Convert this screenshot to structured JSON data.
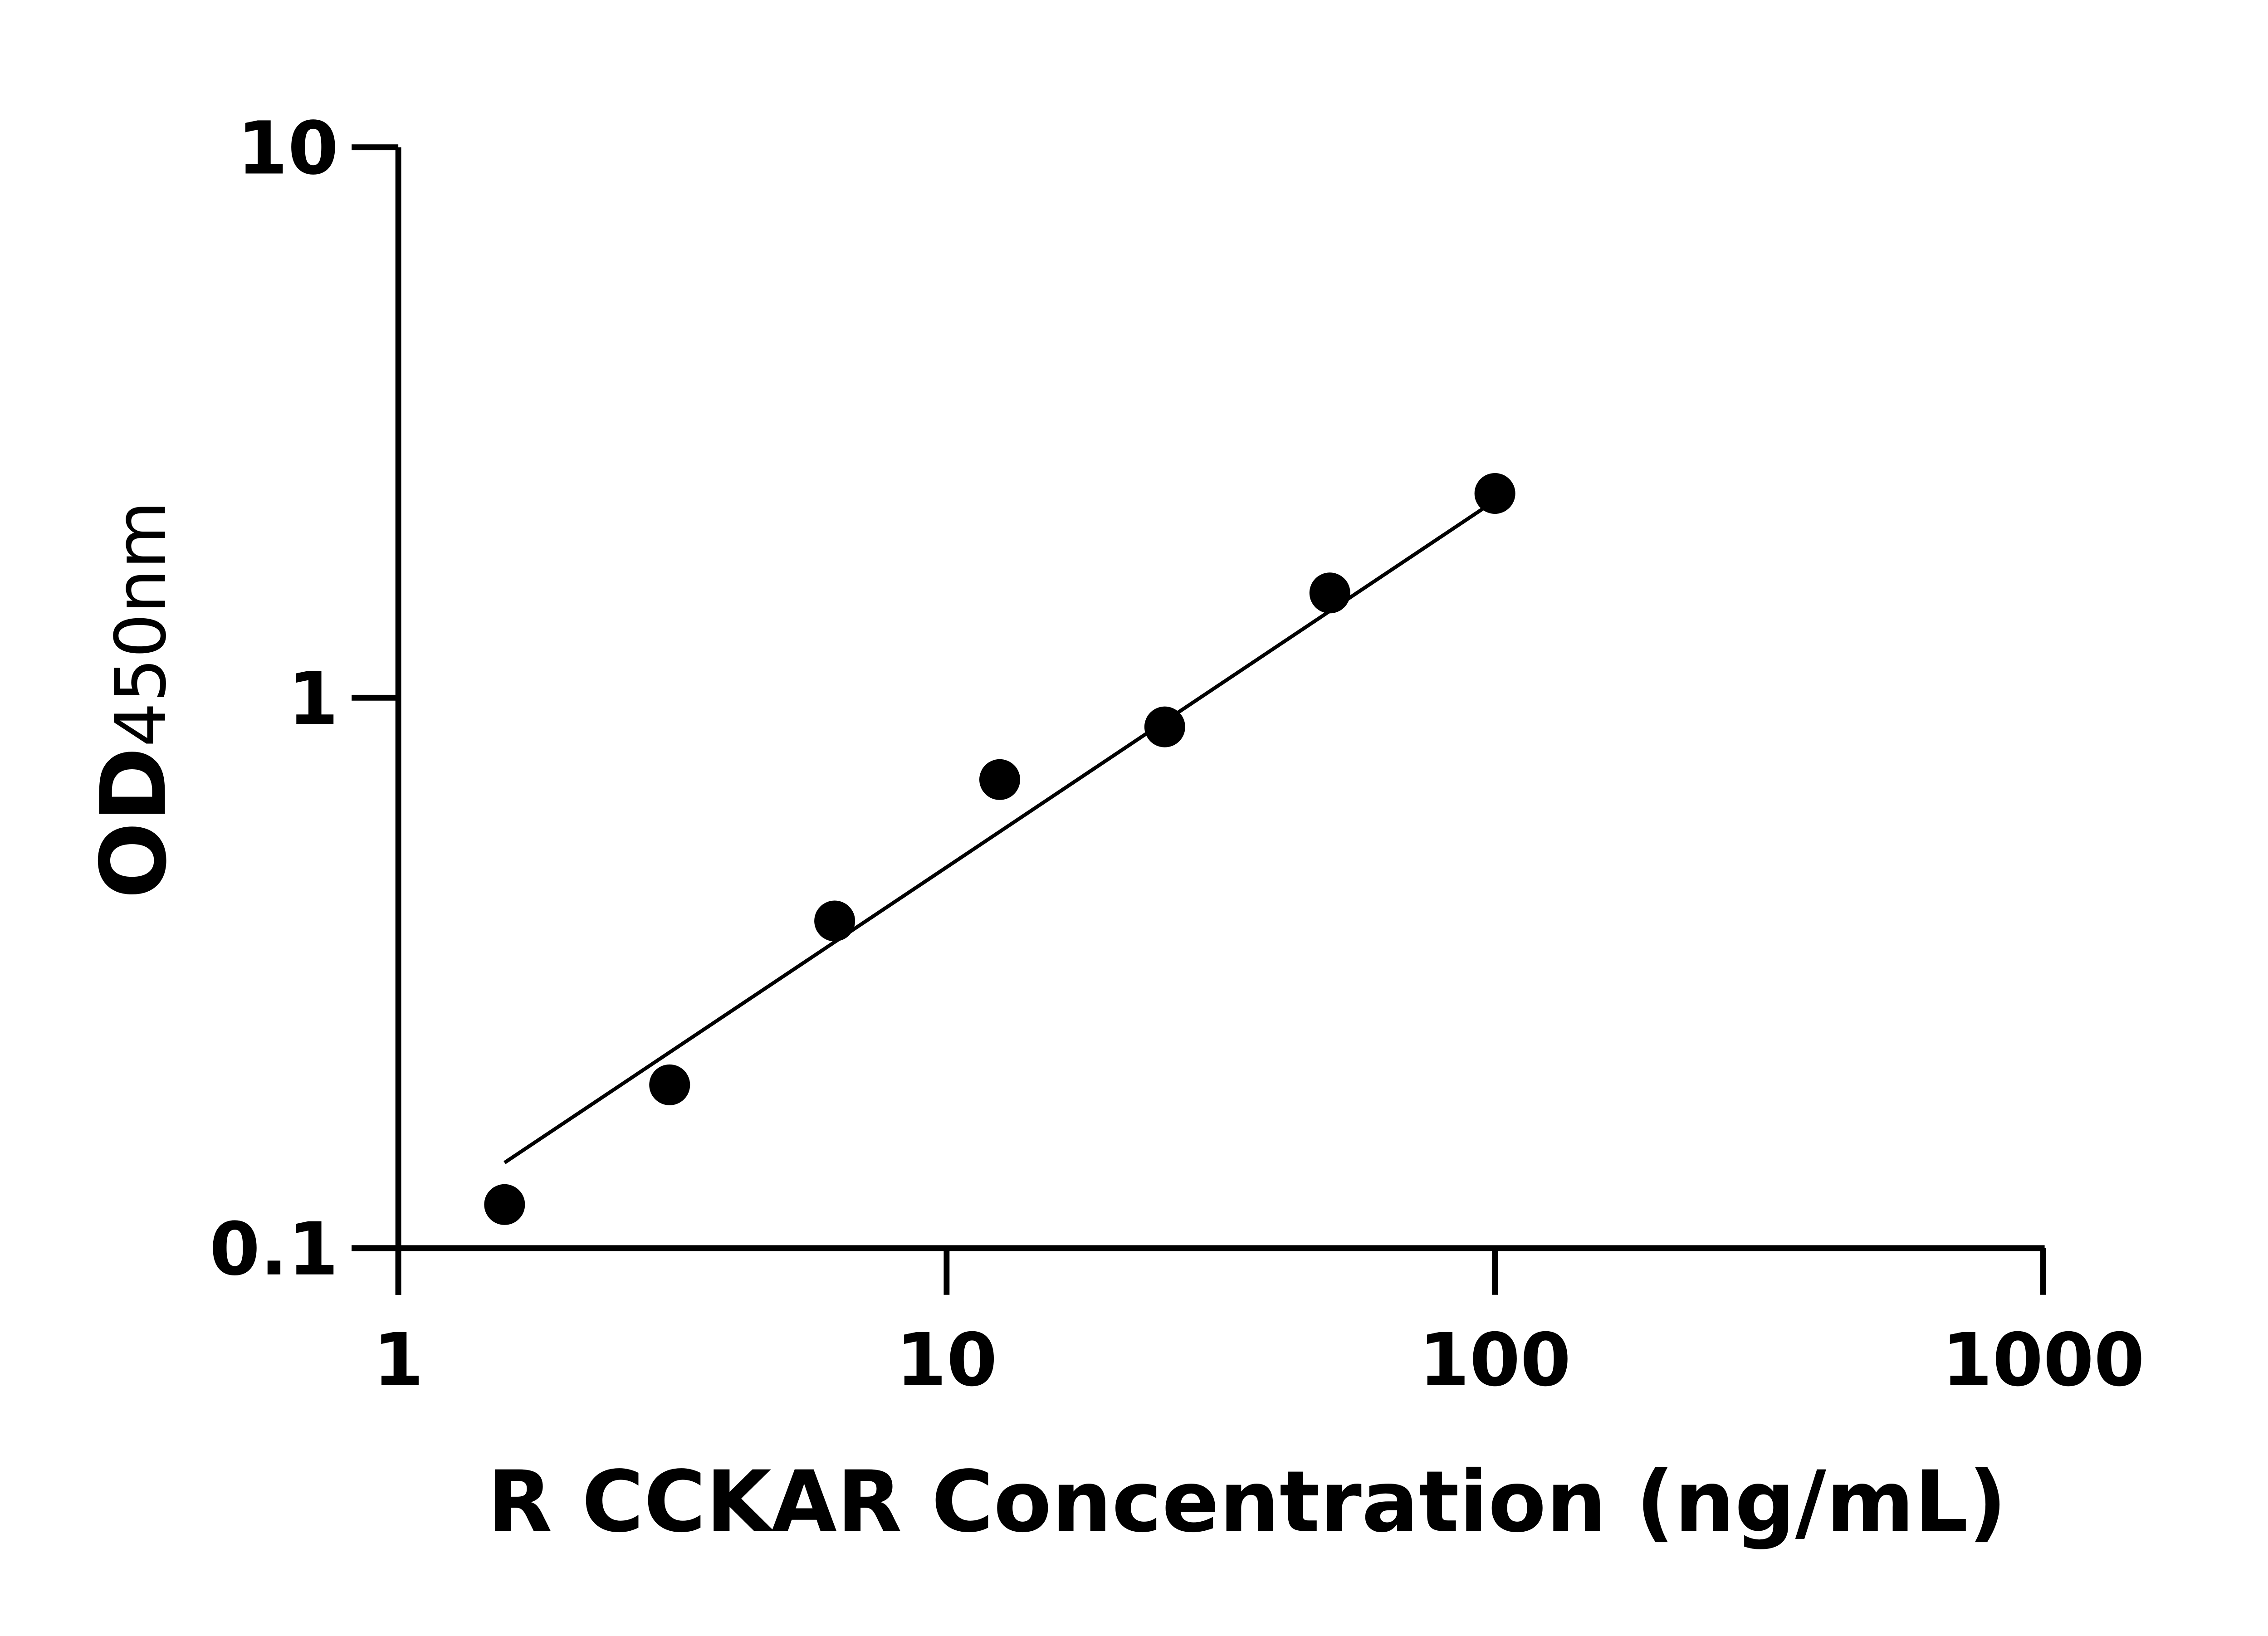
{
  "chart_data": {
    "type": "scatter",
    "title": "",
    "xlabel": "R CCKAR Concentration (ng/mL)",
    "ylabel_main": "OD",
    "ylabel_sub": "450nm",
    "x_scale": "log",
    "y_scale": "log",
    "xlim": [
      1,
      1000
    ],
    "ylim": [
      0.1,
      10
    ],
    "x_ticks": [
      "1",
      "10",
      "100",
      "1000"
    ],
    "y_ticks": [
      "0.1",
      "1",
      "10"
    ],
    "grid": false,
    "points": [
      {
        "x": 1.5625,
        "y": 0.12
      },
      {
        "x": 3.125,
        "y": 0.198
      },
      {
        "x": 6.25,
        "y": 0.393
      },
      {
        "x": 12.5,
        "y": 0.71
      },
      {
        "x": 25,
        "y": 0.885
      },
      {
        "x": 50,
        "y": 1.55
      },
      {
        "x": 100,
        "y": 2.35
      }
    ],
    "fit_line": {
      "x": [
        1.5625,
        100
      ],
      "y": [
        0.143,
        2.28
      ]
    },
    "colors": {
      "points": "#000000",
      "line": "#000000"
    }
  }
}
